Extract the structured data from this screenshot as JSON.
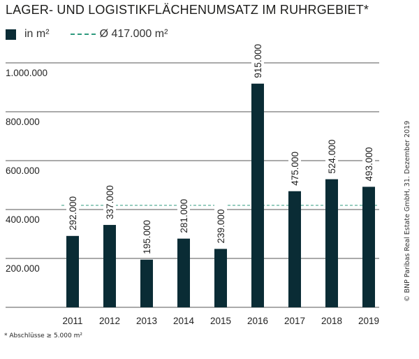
{
  "title": "LAGER- UND LOGISTIKFLÄCHENUMSATZ IM RUHRGEBIET*",
  "legend": {
    "bar_label": "in m²",
    "avg_label": "Ø 417.000 m²"
  },
  "footnote": "* Abschlüsse ≥ 5.000 m²",
  "source": "© BNP Paribas Real Estate GmbH, 31. Dezember 2019",
  "colors": {
    "bar": "#0a2c35",
    "average": "#2e9a7e",
    "grid": "#555555"
  },
  "chart_data": {
    "type": "bar",
    "categories": [
      "2011",
      "2012",
      "2013",
      "2014",
      "2015",
      "2016",
      "2017",
      "2018",
      "2019"
    ],
    "values": [
      292000,
      337000,
      195000,
      281000,
      239000,
      915000,
      475000,
      524000,
      493000
    ],
    "data_labels": [
      "292.000",
      "337.000",
      "195.000",
      "281.000",
      "239.000",
      "915.000",
      "475.000",
      "524.000",
      "493.000"
    ],
    "average": 417000,
    "ylim": [
      0,
      1000000
    ],
    "yticks": [
      200000,
      400000,
      600000,
      800000,
      1000000
    ],
    "ytick_labels": [
      "200.000",
      "400.000",
      "600.000",
      "800.000",
      "1.000.000"
    ],
    "grid": true,
    "legend_position": "top-left"
  }
}
